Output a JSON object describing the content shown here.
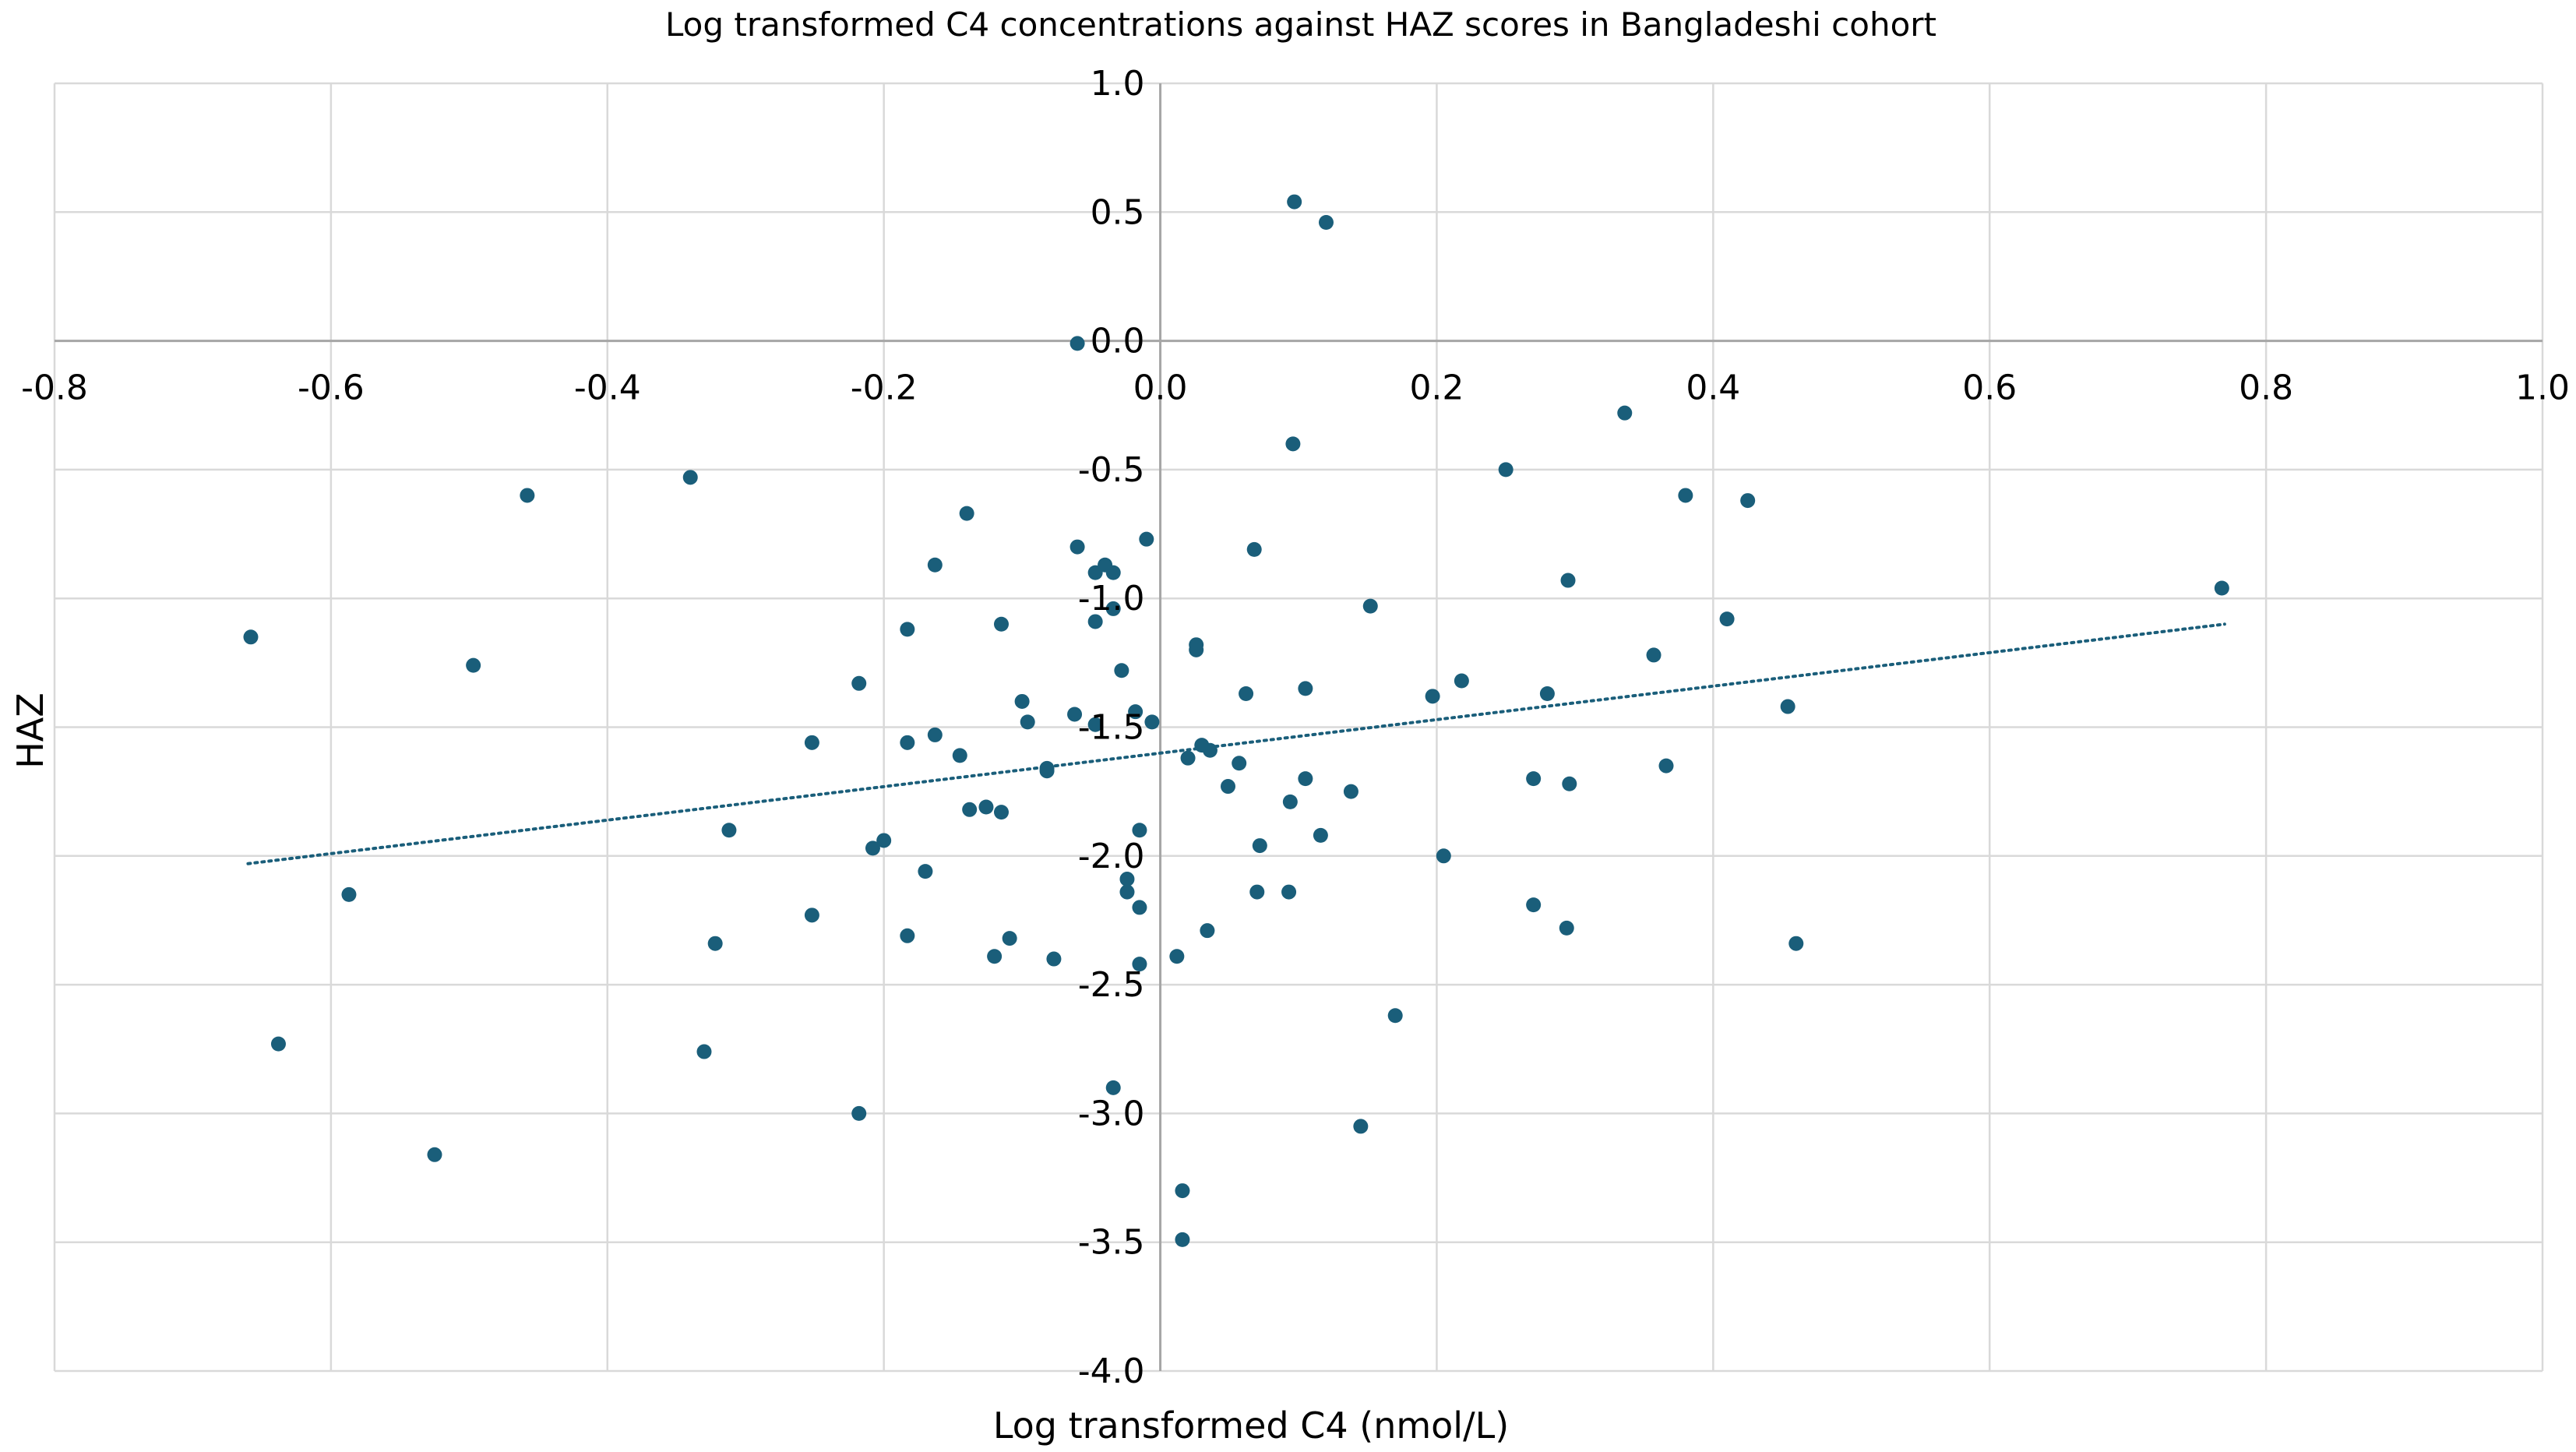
{
  "chart_data": {
    "type": "scatter",
    "title": "Log transformed C4 concentrations against HAZ scores in Bangladeshi cohort",
    "xlabel": "Log transformed C4 (nmol/L)",
    "ylabel": "HAZ",
    "xlim": [
      -0.8,
      1.0
    ],
    "ylim": [
      -4.0,
      1.0
    ],
    "x_ticks": [
      -0.8,
      -0.6,
      -0.4,
      -0.2,
      0.0,
      0.2,
      0.4,
      0.6,
      0.8,
      1.0
    ],
    "y_ticks": [
      1.0,
      0.5,
      0.0,
      -0.5,
      -1.0,
      -1.5,
      -2.0,
      -2.5,
      -3.0,
      -3.5,
      -4.0
    ],
    "x_tick_labels": [
      "-0.8",
      "-0.6",
      "-0.4",
      "-0.2",
      "0.0",
      "0.2",
      "0.4",
      "0.6",
      "0.8",
      "1.0"
    ],
    "y_tick_labels": [
      "1.0",
      "0.5",
      "0.0",
      "-0.5",
      "-1.0",
      "-1.5",
      "-2.0",
      "-2.5",
      "-3.0",
      "-3.5",
      "-4.0"
    ],
    "grid": true,
    "legend": "none",
    "marker_color": "#1a5e7a",
    "trendline": {
      "type": "linear",
      "style": "dotted",
      "color": "#1a5e7a",
      "x_range": [
        -0.66,
        0.77
      ],
      "y_range": [
        -2.03,
        -1.1
      ]
    },
    "series": [
      {
        "name": "HAZ",
        "points": [
          [
            0.097,
            0.54
          ],
          [
            0.12,
            0.46
          ],
          [
            -0.06,
            -0.01
          ],
          [
            0.336,
            -0.28
          ],
          [
            0.096,
            -0.4
          ],
          [
            0.25,
            -0.5
          ],
          [
            0.38,
            -0.6
          ],
          [
            0.425,
            -0.62
          ],
          [
            -0.458,
            -0.6
          ],
          [
            -0.34,
            -0.53
          ],
          [
            -0.14,
            -0.67
          ],
          [
            -0.06,
            -0.8
          ],
          [
            -0.01,
            -0.77
          ],
          [
            0.068,
            -0.81
          ],
          [
            -0.163,
            -0.87
          ],
          [
            -0.04,
            -0.87
          ],
          [
            -0.047,
            -0.9
          ],
          [
            -0.034,
            -0.9
          ],
          [
            0.295,
            -0.93
          ],
          [
            0.768,
            -0.96
          ],
          [
            -0.034,
            -1.04
          ],
          [
            0.152,
            -1.03
          ],
          [
            -0.115,
            -1.1
          ],
          [
            -0.183,
            -1.12
          ],
          [
            -0.047,
            -1.09
          ],
          [
            0.41,
            -1.08
          ],
          [
            -0.658,
            -1.15
          ],
          [
            0.026,
            -1.18
          ],
          [
            0.026,
            -1.2
          ],
          [
            0.357,
            -1.22
          ],
          [
            -0.497,
            -1.26
          ],
          [
            -0.028,
            -1.28
          ],
          [
            -0.218,
            -1.33
          ],
          [
            0.218,
            -1.32
          ],
          [
            0.105,
            -1.35
          ],
          [
            0.062,
            -1.37
          ],
          [
            0.197,
            -1.38
          ],
          [
            0.28,
            -1.37
          ],
          [
            -0.1,
            -1.4
          ],
          [
            0.454,
            -1.42
          ],
          [
            -0.018,
            -1.44
          ],
          [
            -0.062,
            -1.45
          ],
          [
            -0.096,
            -1.48
          ],
          [
            -0.006,
            -1.48
          ],
          [
            -0.047,
            -1.49
          ],
          [
            -0.163,
            -1.53
          ],
          [
            -0.252,
            -1.56
          ],
          [
            -0.183,
            -1.56
          ],
          [
            0.03,
            -1.57
          ],
          [
            0.036,
            -1.59
          ],
          [
            -0.145,
            -1.61
          ],
          [
            0.02,
            -1.62
          ],
          [
            0.057,
            -1.64
          ],
          [
            -0.082,
            -1.66
          ],
          [
            -0.082,
            -1.67
          ],
          [
            0.366,
            -1.65
          ],
          [
            0.27,
            -1.7
          ],
          [
            0.105,
            -1.7
          ],
          [
            0.296,
            -1.72
          ],
          [
            0.049,
            -1.73
          ],
          [
            0.138,
            -1.75
          ],
          [
            0.094,
            -1.79
          ],
          [
            -0.138,
            -1.82
          ],
          [
            -0.126,
            -1.81
          ],
          [
            -0.115,
            -1.83
          ],
          [
            -0.312,
            -1.9
          ],
          [
            -0.015,
            -1.9
          ],
          [
            0.116,
            -1.92
          ],
          [
            -0.2,
            -1.94
          ],
          [
            -0.208,
            -1.97
          ],
          [
            0.072,
            -1.96
          ],
          [
            0.205,
            -2.0
          ],
          [
            -0.17,
            -2.06
          ],
          [
            -0.024,
            -2.09
          ],
          [
            -0.024,
            -2.14
          ],
          [
            0.07,
            -2.14
          ],
          [
            0.093,
            -2.14
          ],
          [
            -0.587,
            -2.15
          ],
          [
            -0.015,
            -2.2
          ],
          [
            0.27,
            -2.19
          ],
          [
            -0.252,
            -2.23
          ],
          [
            0.034,
            -2.29
          ],
          [
            0.294,
            -2.28
          ],
          [
            -0.183,
            -2.31
          ],
          [
            -0.109,
            -2.32
          ],
          [
            -0.322,
            -2.34
          ],
          [
            0.46,
            -2.34
          ],
          [
            -0.12,
            -2.39
          ],
          [
            -0.077,
            -2.4
          ],
          [
            0.012,
            -2.39
          ],
          [
            -0.015,
            -2.42
          ],
          [
            0.17,
            -2.62
          ],
          [
            -0.638,
            -2.73
          ],
          [
            -0.33,
            -2.76
          ],
          [
            -0.034,
            -2.9
          ],
          [
            -0.218,
            -3.0
          ],
          [
            0.145,
            -3.05
          ],
          [
            -0.525,
            -3.16
          ],
          [
            0.016,
            -3.3
          ],
          [
            0.016,
            -3.49
          ]
        ]
      }
    ]
  }
}
